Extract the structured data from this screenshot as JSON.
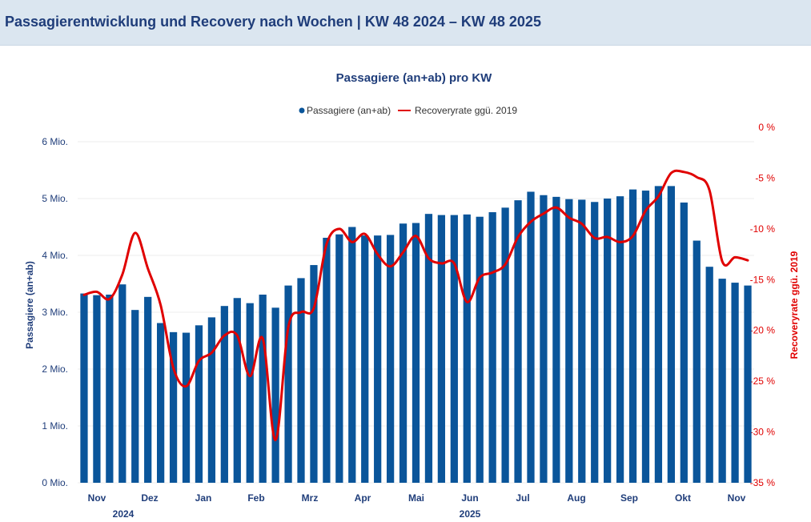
{
  "header": {
    "title": "Passagierentwicklung und Recovery nach Wochen | KW 48 2024 – KW 48 2025"
  },
  "colors": {
    "bar": "#0a559a",
    "line": "#e00000",
    "text": "#1f3d7a",
    "header_bg": "#dbe6f0"
  },
  "chart_data": {
    "type": "bar",
    "title": "Passagiere (an+ab) pro KW",
    "legend": {
      "position": "top",
      "entries": [
        "Passagiere (an+ab)",
        "Recoveryrate ggü. 2019"
      ]
    },
    "ylabel": "Passagiere (an+ab)",
    "y2label": "Recoveryrate ggü. 2019",
    "ylim": [
      0,
      6
    ],
    "y2lim": [
      -35,
      0
    ],
    "yticks": [
      "0 Mio.",
      "1 Mio.",
      "2 Mio.",
      "3 Mio.",
      "4 Mio.",
      "5 Mio.",
      "6 Mio."
    ],
    "y2ticks": [
      "0 %",
      "-5 %",
      "-10 %",
      "-15 %",
      "-20 %",
      "-25 %",
      "-30 %",
      "-35 %"
    ],
    "month_labels": [
      "Nov",
      "Dez",
      "Jan",
      "Feb",
      "Mrz",
      "Apr",
      "Mai",
      "Jun",
      "Jul",
      "Aug",
      "Sep",
      "Okt",
      "Nov"
    ],
    "year_labels": [
      "2024",
      "2025"
    ],
    "grid": "horizontal",
    "series": [
      {
        "name": "Passagiere (an+ab)",
        "type": "bar",
        "values": [
          3.33,
          3.3,
          3.31,
          3.49,
          3.04,
          3.27,
          2.81,
          2.65,
          2.64,
          2.77,
          2.91,
          3.11,
          3.25,
          3.16,
          3.31,
          3.08,
          3.47,
          3.6,
          3.83,
          4.31,
          4.37,
          4.5,
          4.35,
          4.35,
          4.36,
          4.56,
          4.57,
          4.73,
          4.71,
          4.71,
          4.72,
          4.68,
          4.76,
          4.84,
          4.97,
          5.12,
          5.06,
          5.03,
          4.99,
          4.98,
          4.94,
          5.0,
          5.04,
          5.16,
          5.14,
          5.22,
          5.22,
          4.93,
          4.26,
          3.8,
          3.59,
          3.52,
          3.47
        ]
      },
      {
        "name": "Recoveryrate ggü. 2019",
        "type": "line",
        "values": [
          -16.5,
          -16.2,
          -16.9,
          -14.5,
          -10.4,
          -13.9,
          -17.5,
          -23.7,
          -25.5,
          -23.0,
          -22.2,
          -20.5,
          -20.5,
          -24.5,
          -20.8,
          -30.8,
          -19.7,
          -18.2,
          -17.8,
          -11.5,
          -10.0,
          -11.3,
          -10.5,
          -12.5,
          -13.7,
          -12.3,
          -10.7,
          -12.9,
          -13.4,
          -13.4,
          -17.2,
          -14.8,
          -14.3,
          -13.5,
          -10.8,
          -9.3,
          -8.5,
          -7.9,
          -8.9,
          -9.5,
          -10.9,
          -10.8,
          -11.3,
          -10.7,
          -8.2,
          -6.8,
          -4.5,
          -4.4,
          -4.9,
          -6.2,
          -13.2,
          -12.8,
          -13.1
        ]
      }
    ]
  }
}
